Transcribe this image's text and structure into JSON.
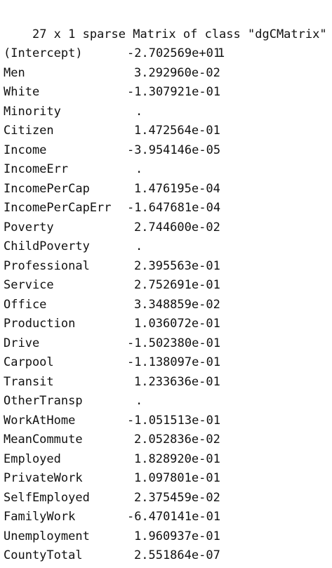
{
  "console": {
    "header": "27 x 1 sparse Matrix of class \"dgCMatrix\"",
    "column_label": "1",
    "rows": [
      {
        "name": "(Intercept)",
        "value": "-2.702569e+01"
      },
      {
        "name": "Men",
        "value": "3.292960e-02"
      },
      {
        "name": "White",
        "value": "-1.307921e-01"
      },
      {
        "name": "Minority",
        "value": "."
      },
      {
        "name": "Citizen",
        "value": "1.472564e-01"
      },
      {
        "name": "Income",
        "value": "-3.954146e-05"
      },
      {
        "name": "IncomeErr",
        "value": "."
      },
      {
        "name": "IncomePerCap",
        "value": "1.476195e-04"
      },
      {
        "name": "IncomePerCapErr",
        "value": "-1.647681e-04"
      },
      {
        "name": "Poverty",
        "value": "2.744600e-02"
      },
      {
        "name": "ChildPoverty",
        "value": "."
      },
      {
        "name": "Professional",
        "value": "2.395563e-01"
      },
      {
        "name": "Service",
        "value": "2.752691e-01"
      },
      {
        "name": "Office",
        "value": "3.348859e-02"
      },
      {
        "name": "Production",
        "value": "1.036072e-01"
      },
      {
        "name": "Drive",
        "value": "-1.502380e-01"
      },
      {
        "name": "Carpool",
        "value": "-1.138097e-01"
      },
      {
        "name": "Transit",
        "value": "1.233636e-01"
      },
      {
        "name": "OtherTransp",
        "value": "."
      },
      {
        "name": "WorkAtHome",
        "value": "-1.051513e-01"
      },
      {
        "name": "MeanCommute",
        "value": "2.052836e-02"
      },
      {
        "name": "Employed",
        "value": "1.828920e-01"
      },
      {
        "name": "PrivateWork",
        "value": "1.097801e-01"
      },
      {
        "name": "SelfEmployed",
        "value": "2.375459e-02"
      },
      {
        "name": "FamilyWork",
        "value": "-6.470141e-01"
      },
      {
        "name": "Unemployment",
        "value": "1.960937e-01"
      },
      {
        "name": "CountyTotal",
        "value": "2.551864e-07"
      }
    ]
  }
}
